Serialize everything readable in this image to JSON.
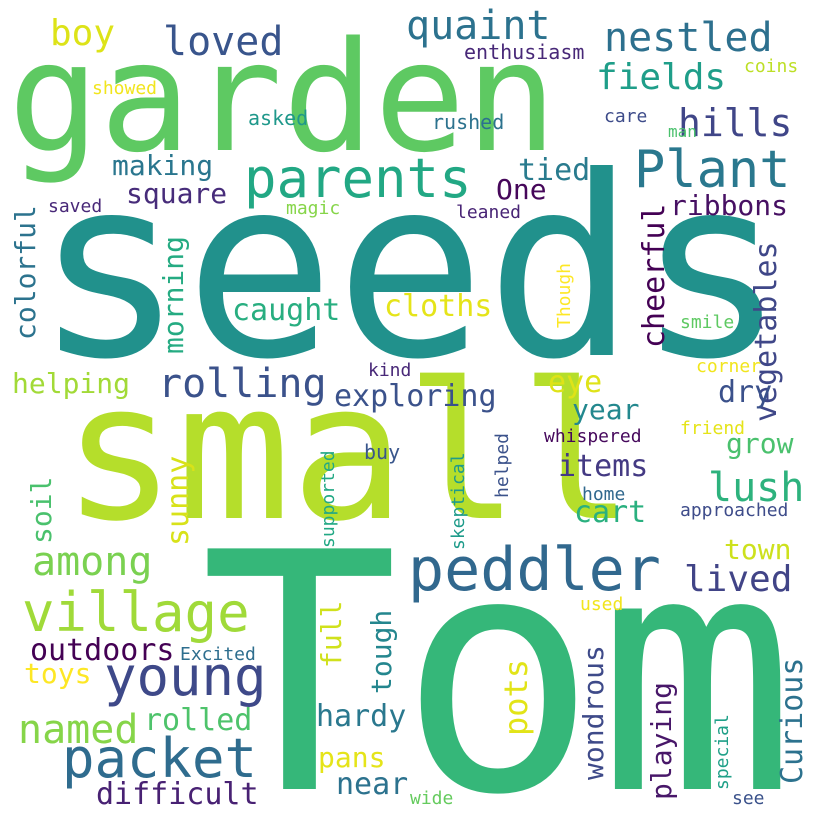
{
  "words": [
    {
      "text": "seeds",
      "color": "#21918c"
    },
    {
      "text": "Tom",
      "color": "#35b779"
    },
    {
      "text": "small",
      "color": "#b5de2b"
    },
    {
      "text": "garden",
      "color": "#5ec962"
    },
    {
      "text": "parents",
      "color": "#22a884"
    },
    {
      "text": "peddler",
      "color": "#31688e"
    },
    {
      "text": "village",
      "color": "#a0da39"
    },
    {
      "text": "young",
      "color": "#3e4989"
    },
    {
      "text": "packet",
      "color": "#2f6c8e"
    },
    {
      "text": "Plant",
      "color": "#2a788e"
    },
    {
      "text": "nestled",
      "color": "#2d708e"
    },
    {
      "text": "quaint",
      "color": "#2c728e"
    },
    {
      "text": "loved",
      "color": "#39558c"
    },
    {
      "text": "boy",
      "color": "#dde318"
    },
    {
      "text": "fields",
      "color": "#1f9e89"
    },
    {
      "text": "hills",
      "color": "#404688"
    },
    {
      "text": "rolling",
      "color": "#3b528b"
    },
    {
      "text": "among",
      "color": "#7ad151"
    },
    {
      "text": "named",
      "color": "#86d549"
    },
    {
      "text": "lush",
      "color": "#2db27d"
    },
    {
      "text": "lived",
      "color": "#414487"
    },
    {
      "text": "difficult",
      "color": "#482173"
    },
    {
      "text": "outdoors",
      "color": "#440154"
    },
    {
      "text": "making",
      "color": "#2a768e"
    },
    {
      "text": "square",
      "color": "#472c7a"
    },
    {
      "text": "tied",
      "color": "#297b8e"
    },
    {
      "text": "One",
      "color": "#46075a"
    },
    {
      "text": "ribbons",
      "color": "#471063"
    },
    {
      "text": "cloths",
      "color": "#e5e419"
    },
    {
      "text": "caught",
      "color": "#28ae80"
    },
    {
      "text": "exploring",
      "color": "#3b528b"
    },
    {
      "text": "helping",
      "color": "#a2da37"
    },
    {
      "text": "colorful",
      "color": "#2c738e"
    },
    {
      "text": "morning",
      "color": "#25ab82"
    },
    {
      "text": "cheerful",
      "color": "#440154"
    },
    {
      "text": "vegetables",
      "color": "#3f4788"
    },
    {
      "text": "eye",
      "color": "#dfe318"
    },
    {
      "text": "dry",
      "color": "#3b518b"
    },
    {
      "text": "year",
      "color": "#23888e"
    },
    {
      "text": "grow",
      "color": "#4ac16d"
    },
    {
      "text": "items",
      "color": "#443a83"
    },
    {
      "text": "cart",
      "color": "#2ab07f"
    },
    {
      "text": "sunny",
      "color": "#d8e219"
    },
    {
      "text": "soil",
      "color": "#4ac16d"
    },
    {
      "text": "town",
      "color": "#cde11d"
    },
    {
      "text": "hardy",
      "color": "#2a788e"
    },
    {
      "text": "rolled",
      "color": "#4ec36b"
    },
    {
      "text": "pans",
      "color": "#e5e419"
    },
    {
      "text": "near",
      "color": "#2c728e"
    },
    {
      "text": "toys",
      "color": "#fde725"
    },
    {
      "text": "tough",
      "color": "#24868e"
    },
    {
      "text": "full",
      "color": "#d0e11c"
    },
    {
      "text": "pots",
      "color": "#e2e418"
    },
    {
      "text": "wondrous",
      "color": "#3e4a89"
    },
    {
      "text": "playing",
      "color": "#481769"
    },
    {
      "text": "Curious",
      "color": "#2c728e"
    },
    {
      "text": "enthusiasm",
      "color": "#482878"
    },
    {
      "text": "coins",
      "color": "#bddf26"
    },
    {
      "text": "showed",
      "color": "#f1e51d"
    },
    {
      "text": "asked",
      "color": "#1f988b"
    },
    {
      "text": "rushed",
      "color": "#2c728e"
    },
    {
      "text": "care",
      "color": "#3e4c8a"
    },
    {
      "text": "man",
      "color": "#4ac16d"
    },
    {
      "text": "saved",
      "color": "#482878"
    },
    {
      "text": "magic",
      "color": "#86d549"
    },
    {
      "text": "leaned",
      "color": "#482475"
    },
    {
      "text": "Though",
      "color": "#fde725"
    },
    {
      "text": "smile",
      "color": "#5ec962"
    },
    {
      "text": "corner",
      "color": "#f1e51d"
    },
    {
      "text": "kind",
      "color": "#482878"
    },
    {
      "text": "friend",
      "color": "#e5e419"
    },
    {
      "text": "whispered",
      "color": "#46085c"
    },
    {
      "text": "helped",
      "color": "#3b528b"
    },
    {
      "text": "skeptical",
      "color": "#1e9b8a"
    },
    {
      "text": "buy",
      "color": "#39568c"
    },
    {
      "text": "supported",
      "color": "#22a884"
    },
    {
      "text": "home",
      "color": "#31688e"
    },
    {
      "text": "approached",
      "color": "#3e4c8a"
    },
    {
      "text": "Excited",
      "color": "#2e6e8e"
    },
    {
      "text": "used",
      "color": "#f1e51d"
    },
    {
      "text": "special",
      "color": "#1fa088"
    },
    {
      "text": "wide",
      "color": "#65cb5e"
    },
    {
      "text": "see",
      "color": "#3b528b"
    }
  ]
}
